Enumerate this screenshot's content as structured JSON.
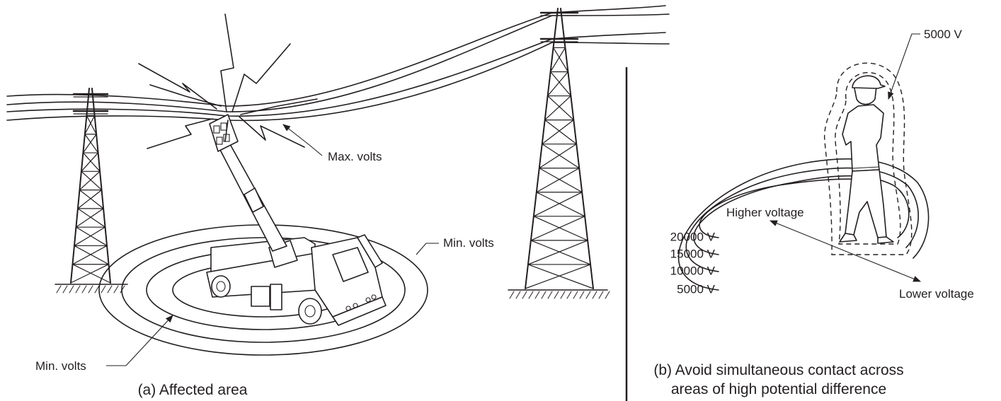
{
  "panels": [
    {
      "labels": {
        "max_volts": "Max. volts",
        "min_volts_top": "Min. volts",
        "min_volts_bottom": "Min. volts"
      },
      "caption": [
        "(a) Affected area"
      ]
    },
    {
      "labels": {
        "person_field": "5000 V",
        "higher": "Higher voltage",
        "lower": "Lower voltage",
        "rings": [
          "20000 V",
          "15000 V",
          "10000 V",
          "5000 V"
        ]
      },
      "caption": [
        "(b) Avoid simultaneous contact across",
        "areas of high potential difference"
      ]
    }
  ]
}
